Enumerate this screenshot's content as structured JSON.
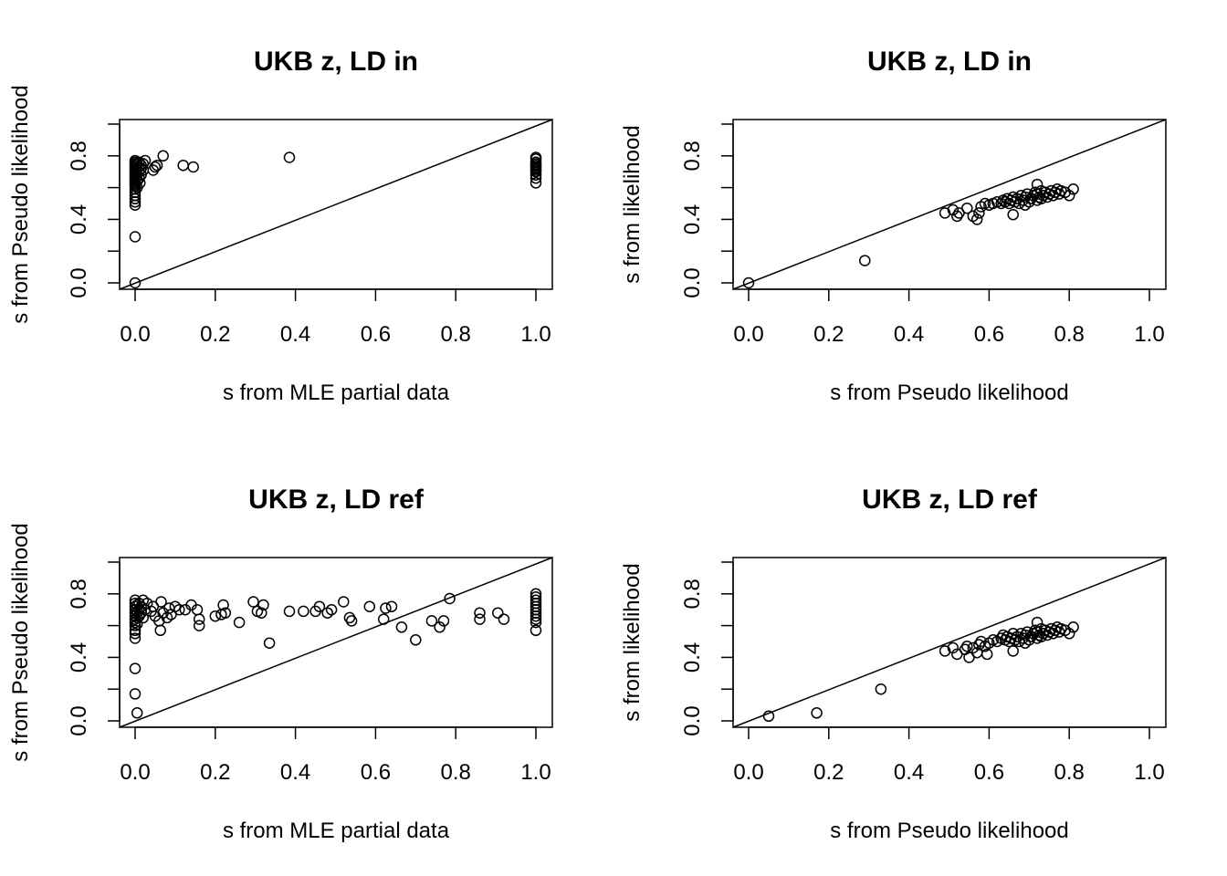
{
  "chart_data": [
    {
      "type": "scatter",
      "title": "UKB z, LD in",
      "xlabel": "s from MLE partial data",
      "ylabel": "s from Pseudo likelihood",
      "xlim": [
        0,
        1
      ],
      "ylim": [
        0,
        1
      ],
      "xticks": [
        "0.0",
        "0.2",
        "0.4",
        "0.6",
        "0.8",
        "1.0"
      ],
      "yticks": [
        "0.0",
        "0.4",
        "0.8"
      ],
      "reference_line": "y = x",
      "grid": false,
      "points": [
        [
          0.0,
          0.0
        ],
        [
          0.0,
          0.29
        ],
        [
          0.0,
          0.49
        ],
        [
          0.0,
          0.51
        ],
        [
          0.0,
          0.53
        ],
        [
          0.0,
          0.55
        ],
        [
          0.0,
          0.57
        ],
        [
          0.0,
          0.59
        ],
        [
          0.0,
          0.61
        ],
        [
          0.0,
          0.62
        ],
        [
          0.0,
          0.63
        ],
        [
          0.0,
          0.64
        ],
        [
          0.0,
          0.65
        ],
        [
          0.0,
          0.66
        ],
        [
          0.0,
          0.67
        ],
        [
          0.0,
          0.68
        ],
        [
          0.0,
          0.69
        ],
        [
          0.0,
          0.7
        ],
        [
          0.0,
          0.71
        ],
        [
          0.0,
          0.72
        ],
        [
          0.0,
          0.73
        ],
        [
          0.0,
          0.74
        ],
        [
          0.0,
          0.75
        ],
        [
          0.0,
          0.76
        ],
        [
          0.0,
          0.77
        ],
        [
          0.005,
          0.6
        ],
        [
          0.005,
          0.64
        ],
        [
          0.005,
          0.68
        ],
        [
          0.005,
          0.72
        ],
        [
          0.005,
          0.75
        ],
        [
          0.01,
          0.66
        ],
        [
          0.01,
          0.7
        ],
        [
          0.01,
          0.73
        ],
        [
          0.01,
          0.76
        ],
        [
          0.015,
          0.68
        ],
        [
          0.015,
          0.72
        ],
        [
          0.015,
          0.74
        ],
        [
          0.02,
          0.71
        ],
        [
          0.02,
          0.75
        ],
        [
          0.012,
          0.63
        ],
        [
          0.025,
          0.77
        ],
        [
          0.045,
          0.71
        ],
        [
          0.05,
          0.73
        ],
        [
          0.055,
          0.74
        ],
        [
          0.07,
          0.8
        ],
        [
          0.12,
          0.74
        ],
        [
          0.145,
          0.73
        ],
        [
          0.385,
          0.79
        ],
        [
          1.0,
          0.63
        ],
        [
          1.0,
          0.66
        ],
        [
          1.0,
          0.68
        ],
        [
          1.0,
          0.7
        ],
        [
          1.0,
          0.71
        ],
        [
          1.0,
          0.72
        ],
        [
          1.0,
          0.73
        ],
        [
          1.0,
          0.74
        ],
        [
          1.0,
          0.75
        ],
        [
          1.0,
          0.76
        ],
        [
          1.0,
          0.78
        ],
        [
          1.0,
          0.79
        ]
      ]
    },
    {
      "type": "scatter",
      "title": "UKB z, LD in",
      "xlabel": "s from Pseudo likelihood",
      "ylabel": "s from likelihood",
      "xlim": [
        0,
        1
      ],
      "ylim": [
        0,
        1
      ],
      "xticks": [
        "0.0",
        "0.2",
        "0.4",
        "0.6",
        "0.8",
        "1.0"
      ],
      "yticks": [
        "0.0",
        "0.4",
        "0.8"
      ],
      "reference_line": "y = x",
      "grid": false,
      "points": [
        [
          0.0,
          0.0
        ],
        [
          0.29,
          0.14
        ],
        [
          0.49,
          0.44
        ],
        [
          0.51,
          0.46
        ],
        [
          0.52,
          0.42
        ],
        [
          0.525,
          0.44
        ],
        [
          0.545,
          0.47
        ],
        [
          0.56,
          0.42
        ],
        [
          0.57,
          0.4
        ],
        [
          0.575,
          0.44
        ],
        [
          0.58,
          0.48
        ],
        [
          0.59,
          0.5
        ],
        [
          0.6,
          0.49
        ],
        [
          0.61,
          0.5
        ],
        [
          0.62,
          0.51
        ],
        [
          0.63,
          0.5
        ],
        [
          0.635,
          0.52
        ],
        [
          0.64,
          0.51
        ],
        [
          0.645,
          0.53
        ],
        [
          0.65,
          0.5
        ],
        [
          0.655,
          0.52
        ],
        [
          0.66,
          0.43
        ],
        [
          0.66,
          0.54
        ],
        [
          0.665,
          0.51
        ],
        [
          0.67,
          0.53
        ],
        [
          0.675,
          0.5
        ],
        [
          0.68,
          0.55
        ],
        [
          0.685,
          0.52
        ],
        [
          0.69,
          0.49
        ],
        [
          0.69,
          0.54
        ],
        [
          0.695,
          0.56
        ],
        [
          0.7,
          0.51
        ],
        [
          0.705,
          0.53
        ],
        [
          0.71,
          0.55
        ],
        [
          0.715,
          0.57
        ],
        [
          0.72,
          0.52
        ],
        [
          0.72,
          0.56
        ],
        [
          0.725,
          0.54
        ],
        [
          0.73,
          0.58
        ],
        [
          0.73,
          0.53
        ],
        [
          0.735,
          0.55
        ],
        [
          0.74,
          0.57
        ],
        [
          0.745,
          0.54
        ],
        [
          0.75,
          0.56
        ],
        [
          0.755,
          0.58
        ],
        [
          0.76,
          0.55
        ],
        [
          0.765,
          0.57
        ],
        [
          0.77,
          0.59
        ],
        [
          0.775,
          0.56
        ],
        [
          0.78,
          0.58
        ],
        [
          0.79,
          0.57
        ],
        [
          0.8,
          0.55
        ],
        [
          0.81,
          0.59
        ],
        [
          0.72,
          0.62
        ]
      ]
    },
    {
      "type": "scatter",
      "title": "UKB z, LD ref",
      "xlabel": "s from MLE partial data",
      "ylabel": "s from Pseudo likelihood",
      "xlim": [
        0,
        1
      ],
      "ylim": [
        0,
        1
      ],
      "xticks": [
        "0.0",
        "0.2",
        "0.4",
        "0.6",
        "0.8",
        "1.0"
      ],
      "yticks": [
        "0.0",
        "0.4",
        "0.8"
      ],
      "reference_line": "y = x",
      "grid": false,
      "points": [
        [
          0.005,
          0.05
        ],
        [
          0.0,
          0.17
        ],
        [
          0.0,
          0.33
        ],
        [
          0.0,
          0.52
        ],
        [
          0.0,
          0.55
        ],
        [
          0.0,
          0.57
        ],
        [
          0.0,
          0.6
        ],
        [
          0.0,
          0.62
        ],
        [
          0.0,
          0.64
        ],
        [
          0.0,
          0.66
        ],
        [
          0.0,
          0.68
        ],
        [
          0.0,
          0.7
        ],
        [
          0.0,
          0.72
        ],
        [
          0.0,
          0.74
        ],
        [
          0.0,
          0.76
        ],
        [
          0.005,
          0.61
        ],
        [
          0.005,
          0.65
        ],
        [
          0.005,
          0.69
        ],
        [
          0.005,
          0.73
        ],
        [
          0.01,
          0.66
        ],
        [
          0.01,
          0.7
        ],
        [
          0.01,
          0.74
        ],
        [
          0.015,
          0.68
        ],
        [
          0.015,
          0.72
        ],
        [
          0.02,
          0.65
        ],
        [
          0.02,
          0.76
        ],
        [
          0.025,
          0.7
        ],
        [
          0.03,
          0.74
        ],
        [
          0.04,
          0.69
        ],
        [
          0.045,
          0.72
        ],
        [
          0.05,
          0.66
        ],
        [
          0.06,
          0.63
        ],
        [
          0.063,
          0.57
        ],
        [
          0.065,
          0.75
        ],
        [
          0.07,
          0.68
        ],
        [
          0.08,
          0.65
        ],
        [
          0.085,
          0.71
        ],
        [
          0.09,
          0.67
        ],
        [
          0.1,
          0.72
        ],
        [
          0.11,
          0.7
        ],
        [
          0.125,
          0.7
        ],
        [
          0.14,
          0.73
        ],
        [
          0.155,
          0.7
        ],
        [
          0.16,
          0.64
        ],
        [
          0.16,
          0.6
        ],
        [
          0.2,
          0.66
        ],
        [
          0.215,
          0.67
        ],
        [
          0.22,
          0.73
        ],
        [
          0.225,
          0.68
        ],
        [
          0.26,
          0.62
        ],
        [
          0.295,
          0.75
        ],
        [
          0.305,
          0.69
        ],
        [
          0.315,
          0.68
        ],
        [
          0.32,
          0.73
        ],
        [
          0.335,
          0.49
        ],
        [
          0.385,
          0.69
        ],
        [
          0.42,
          0.69
        ],
        [
          0.45,
          0.69
        ],
        [
          0.46,
          0.72
        ],
        [
          0.48,
          0.68
        ],
        [
          0.49,
          0.7
        ],
        [
          0.52,
          0.75
        ],
        [
          0.535,
          0.65
        ],
        [
          0.54,
          0.63
        ],
        [
          0.585,
          0.72
        ],
        [
          0.62,
          0.64
        ],
        [
          0.625,
          0.71
        ],
        [
          0.64,
          0.72
        ],
        [
          0.665,
          0.59
        ],
        [
          0.7,
          0.51
        ],
        [
          0.74,
          0.63
        ],
        [
          0.76,
          0.59
        ],
        [
          0.77,
          0.63
        ],
        [
          0.785,
          0.77
        ],
        [
          0.86,
          0.64
        ],
        [
          0.86,
          0.68
        ],
        [
          0.905,
          0.68
        ],
        [
          0.92,
          0.64
        ],
        [
          1.0,
          0.57
        ],
        [
          1.0,
          0.62
        ],
        [
          1.0,
          0.64
        ],
        [
          1.0,
          0.66
        ],
        [
          1.0,
          0.68
        ],
        [
          1.0,
          0.7
        ],
        [
          1.0,
          0.72
        ],
        [
          1.0,
          0.74
        ],
        [
          1.0,
          0.76
        ],
        [
          1.0,
          0.78
        ],
        [
          1.0,
          0.8
        ]
      ]
    },
    {
      "type": "scatter",
      "title": "UKB z, LD ref",
      "xlabel": "s from Pseudo likelihood",
      "ylabel": "s from likelihood",
      "xlim": [
        0,
        1
      ],
      "ylim": [
        0,
        1
      ],
      "xticks": [
        "0.0",
        "0.2",
        "0.4",
        "0.6",
        "0.8",
        "1.0"
      ],
      "yticks": [
        "0.0",
        "0.4",
        "0.8"
      ],
      "reference_line": "y = x",
      "grid": false,
      "points": [
        [
          0.05,
          0.03
        ],
        [
          0.17,
          0.05
        ],
        [
          0.33,
          0.2
        ],
        [
          0.49,
          0.44
        ],
        [
          0.51,
          0.46
        ],
        [
          0.52,
          0.42
        ],
        [
          0.54,
          0.45
        ],
        [
          0.545,
          0.47
        ],
        [
          0.55,
          0.4
        ],
        [
          0.56,
          0.46
        ],
        [
          0.57,
          0.43
        ],
        [
          0.575,
          0.48
        ],
        [
          0.58,
          0.5
        ],
        [
          0.59,
          0.47
        ],
        [
          0.595,
          0.42
        ],
        [
          0.6,
          0.49
        ],
        [
          0.61,
          0.51
        ],
        [
          0.62,
          0.5
        ],
        [
          0.63,
          0.52
        ],
        [
          0.635,
          0.54
        ],
        [
          0.64,
          0.51
        ],
        [
          0.645,
          0.53
        ],
        [
          0.65,
          0.5
        ],
        [
          0.655,
          0.52
        ],
        [
          0.66,
          0.44
        ],
        [
          0.66,
          0.55
        ],
        [
          0.665,
          0.51
        ],
        [
          0.67,
          0.53
        ],
        [
          0.675,
          0.5
        ],
        [
          0.68,
          0.55
        ],
        [
          0.685,
          0.52
        ],
        [
          0.69,
          0.49
        ],
        [
          0.69,
          0.54
        ],
        [
          0.695,
          0.56
        ],
        [
          0.7,
          0.51
        ],
        [
          0.705,
          0.53
        ],
        [
          0.71,
          0.55
        ],
        [
          0.715,
          0.57
        ],
        [
          0.72,
          0.52
        ],
        [
          0.72,
          0.56
        ],
        [
          0.725,
          0.54
        ],
        [
          0.73,
          0.58
        ],
        [
          0.73,
          0.53
        ],
        [
          0.735,
          0.55
        ],
        [
          0.74,
          0.57
        ],
        [
          0.745,
          0.54
        ],
        [
          0.75,
          0.56
        ],
        [
          0.755,
          0.58
        ],
        [
          0.76,
          0.55
        ],
        [
          0.765,
          0.57
        ],
        [
          0.77,
          0.59
        ],
        [
          0.775,
          0.56
        ],
        [
          0.78,
          0.58
        ],
        [
          0.79,
          0.57
        ],
        [
          0.8,
          0.55
        ],
        [
          0.81,
          0.59
        ],
        [
          0.72,
          0.62
        ]
      ]
    }
  ]
}
